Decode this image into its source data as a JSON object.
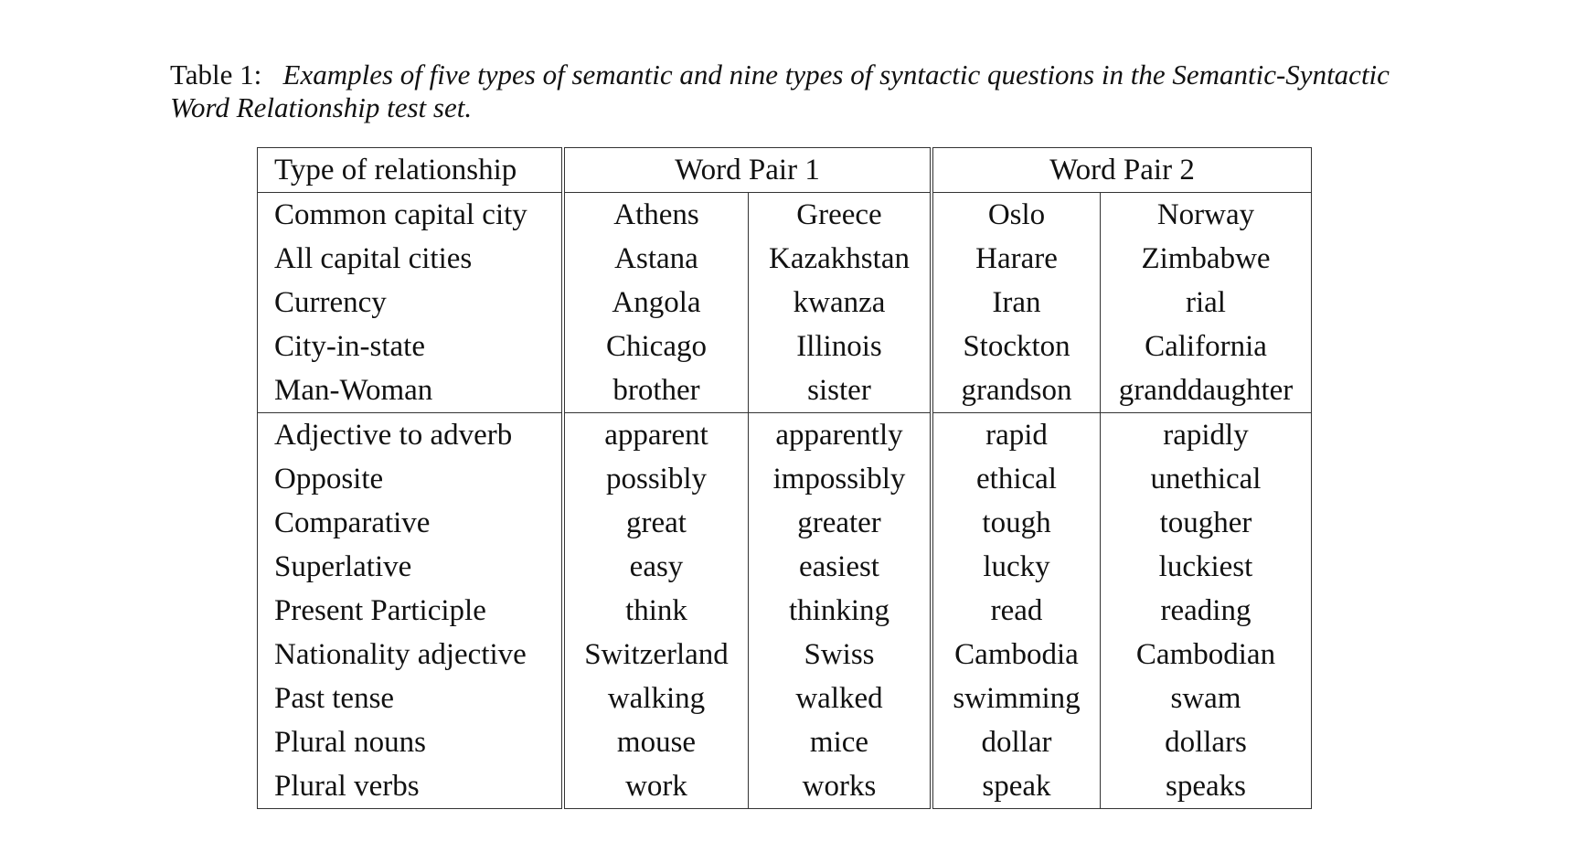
{
  "caption": {
    "label": "Table 1:",
    "text": "Examples of five types of semantic and nine types of syntactic questions in the Semantic-Syntactic Word Relationship test set."
  },
  "table": {
    "headers": {
      "type": "Type of relationship",
      "pair1": "Word Pair 1",
      "pair2": "Word Pair 2"
    },
    "semantic": [
      {
        "type": "Common capital city",
        "a1": "Athens",
        "b1": "Greece",
        "a2": "Oslo",
        "b2": "Norway"
      },
      {
        "type": "All capital cities",
        "a1": "Astana",
        "b1": "Kazakhstan",
        "a2": "Harare",
        "b2": "Zimbabwe"
      },
      {
        "type": "Currency",
        "a1": "Angola",
        "b1": "kwanza",
        "a2": "Iran",
        "b2": "rial"
      },
      {
        "type": "City-in-state",
        "a1": "Chicago",
        "b1": "Illinois",
        "a2": "Stockton",
        "b2": "California"
      },
      {
        "type": "Man-Woman",
        "a1": "brother",
        "b1": "sister",
        "a2": "grandson",
        "b2": "granddaughter"
      }
    ],
    "syntactic": [
      {
        "type": "Adjective to adverb",
        "a1": "apparent",
        "b1": "apparently",
        "a2": "rapid",
        "b2": "rapidly"
      },
      {
        "type": "Opposite",
        "a1": "possibly",
        "b1": "impossibly",
        "a2": "ethical",
        "b2": "unethical"
      },
      {
        "type": "Comparative",
        "a1": "great",
        "b1": "greater",
        "a2": "tough",
        "b2": "tougher"
      },
      {
        "type": "Superlative",
        "a1": "easy",
        "b1": "easiest",
        "a2": "lucky",
        "b2": "luckiest"
      },
      {
        "type": "Present Participle",
        "a1": "think",
        "b1": "thinking",
        "a2": "read",
        "b2": "reading"
      },
      {
        "type": "Nationality adjective",
        "a1": "Switzerland",
        "b1": "Swiss",
        "a2": "Cambodia",
        "b2": "Cambodian"
      },
      {
        "type": "Past tense",
        "a1": "walking",
        "b1": "walked",
        "a2": "swimming",
        "b2": "swam"
      },
      {
        "type": "Plural nouns",
        "a1": "mouse",
        "b1": "mice",
        "a2": "dollar",
        "b2": "dollars"
      },
      {
        "type": "Plural verbs",
        "a1": "work",
        "b1": "works",
        "a2": "speak",
        "b2": "speaks"
      }
    ]
  }
}
